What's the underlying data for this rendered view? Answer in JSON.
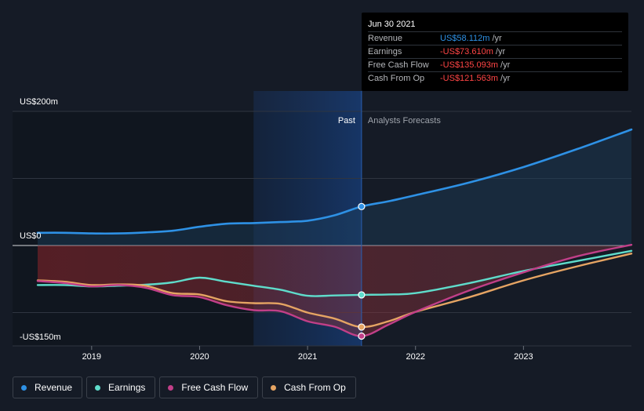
{
  "chart_data": {
    "type": "line",
    "currency_unit": "US$m",
    "x_range": [
      2018.5,
      2024.0
    ],
    "y_range": [
      -150,
      200
    ],
    "y_labels": [
      {
        "text": "US$200m",
        "value": 200
      },
      {
        "text": "US$0",
        "value": 0
      },
      {
        "text": "-US$150m",
        "value": -150
      }
    ],
    "x_ticks": [
      {
        "label": "2019",
        "value": 2019.0
      },
      {
        "label": "2020",
        "value": 2020.0
      },
      {
        "label": "2021",
        "value": 2021.0
      },
      {
        "label": "2022",
        "value": 2022.0
      },
      {
        "label": "2023",
        "value": 2023.0
      }
    ],
    "split": {
      "date": 2021.5,
      "past_label": "Past",
      "forecast_label": "Analysts Forecasts",
      "shade_start": 2020.5
    },
    "series": [
      {
        "name": "Revenue",
        "color": "#2e91e5",
        "marker_value": 58.112,
        "points": [
          [
            2018.5,
            19
          ],
          [
            2018.75,
            19
          ],
          [
            2019.0,
            18
          ],
          [
            2019.25,
            18
          ],
          [
            2019.5,
            19.5
          ],
          [
            2019.75,
            22
          ],
          [
            2020.0,
            28
          ],
          [
            2020.25,
            32.5
          ],
          [
            2020.5,
            33.5
          ],
          [
            2020.75,
            35
          ],
          [
            2021.0,
            37
          ],
          [
            2021.25,
            45
          ],
          [
            2021.5,
            58.112
          ],
          [
            2021.75,
            66
          ],
          [
            2022.0,
            75
          ],
          [
            2022.5,
            94
          ],
          [
            2023.0,
            117
          ],
          [
            2023.5,
            144
          ],
          [
            2024.0,
            173
          ]
        ]
      },
      {
        "name": "Earnings",
        "color": "#5fdccb",
        "marker_value": -73.61,
        "points": [
          [
            2018.5,
            -59
          ],
          [
            2018.75,
            -59
          ],
          [
            2019.0,
            -61
          ],
          [
            2019.25,
            -60
          ],
          [
            2019.5,
            -58.5
          ],
          [
            2019.75,
            -55
          ],
          [
            2020.0,
            -48
          ],
          [
            2020.25,
            -54
          ],
          [
            2020.5,
            -60
          ],
          [
            2020.75,
            -66
          ],
          [
            2021.0,
            -75
          ],
          [
            2021.25,
            -74.5
          ],
          [
            2021.5,
            -73.61
          ],
          [
            2021.75,
            -73
          ],
          [
            2022.0,
            -71
          ],
          [
            2022.5,
            -56
          ],
          [
            2023.0,
            -38
          ],
          [
            2023.5,
            -23
          ],
          [
            2024.0,
            -8
          ]
        ]
      },
      {
        "name": "Free Cash Flow",
        "color": "#c13f88",
        "marker_value": -135.093,
        "points": [
          [
            2018.5,
            -53
          ],
          [
            2018.75,
            -56
          ],
          [
            2019.0,
            -61
          ],
          [
            2019.25,
            -59
          ],
          [
            2019.5,
            -63
          ],
          [
            2019.75,
            -74
          ],
          [
            2020.0,
            -77
          ],
          [
            2020.25,
            -89
          ],
          [
            2020.5,
            -96.5
          ],
          [
            2020.75,
            -98
          ],
          [
            2021.0,
            -113
          ],
          [
            2021.25,
            -121
          ],
          [
            2021.5,
            -135.093
          ],
          [
            2021.75,
            -118
          ],
          [
            2022.0,
            -99
          ],
          [
            2022.5,
            -67
          ],
          [
            2023.0,
            -40
          ],
          [
            2023.5,
            -16
          ],
          [
            2024.0,
            1
          ]
        ]
      },
      {
        "name": "Cash From Op",
        "color": "#e5a463",
        "marker_value": -121.563,
        "points": [
          [
            2018.5,
            -52
          ],
          [
            2018.75,
            -54
          ],
          [
            2019.0,
            -59
          ],
          [
            2019.25,
            -58
          ],
          [
            2019.5,
            -60
          ],
          [
            2019.75,
            -71
          ],
          [
            2020.0,
            -73
          ],
          [
            2020.25,
            -83
          ],
          [
            2020.5,
            -86
          ],
          [
            2020.75,
            -87
          ],
          [
            2021.0,
            -100
          ],
          [
            2021.25,
            -109
          ],
          [
            2021.5,
            -121.563
          ],
          [
            2021.75,
            -113
          ],
          [
            2022.0,
            -99
          ],
          [
            2022.5,
            -77
          ],
          [
            2023.0,
            -52
          ],
          [
            2023.5,
            -31
          ],
          [
            2024.0,
            -12
          ]
        ]
      }
    ]
  },
  "tooltip": {
    "date": "Jun 30 2021",
    "rows": [
      {
        "label": "Revenue",
        "value": "US$58.112m",
        "unit": " /yr",
        "color": "#2e91e5"
      },
      {
        "label": "Earnings",
        "value": "-US$73.610m",
        "unit": " /yr",
        "color": "#ff4545"
      },
      {
        "label": "Free Cash Flow",
        "value": "-US$135.093m",
        "unit": " /yr",
        "color": "#ff4545"
      },
      {
        "label": "Cash From Op",
        "value": "-US$121.563m",
        "unit": " /yr",
        "color": "#ff4545"
      }
    ]
  },
  "legend": [
    {
      "label": "Revenue",
      "color": "#2e91e5"
    },
    {
      "label": "Earnings",
      "color": "#5fdccb"
    },
    {
      "label": "Free Cash Flow",
      "color": "#c13f88"
    },
    {
      "label": "Cash From Op",
      "color": "#e5a463"
    }
  ]
}
